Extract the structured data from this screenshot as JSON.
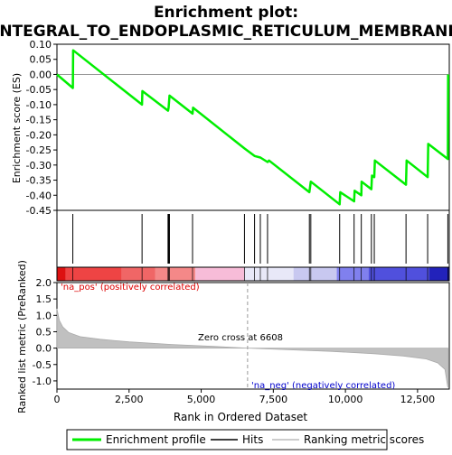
{
  "chart_data": {
    "type": "line",
    "title": "Enrichment plot:",
    "subtitle": "INTEGRAL_TO_ENDOPLASMIC_RETICULUM_MEMBRANE",
    "top_panel": {
      "ylabel": "Enrichment score (ES)",
      "ylim": [
        -0.45,
        0.1
      ],
      "yticks": [
        "0.10",
        "0.05",
        "0.00",
        "-0.05",
        "-0.10",
        "-0.15",
        "-0.20",
        "-0.25",
        "-0.30",
        "-0.35",
        "-0.40",
        "-0.45"
      ],
      "ytick_values": [
        0.1,
        0.05,
        0.0,
        -0.05,
        -0.1,
        -0.15,
        -0.2,
        -0.25,
        -0.3,
        -0.35,
        -0.4,
        -0.45
      ],
      "series_color": "#00ee00",
      "es_points": [
        [
          0,
          0.0
        ],
        [
          550,
          -0.045
        ],
        [
          560,
          0.08
        ],
        [
          2950,
          -0.1
        ],
        [
          2960,
          -0.055
        ],
        [
          3850,
          -0.12
        ],
        [
          3870,
          -0.11
        ],
        [
          3900,
          -0.07
        ],
        [
          4700,
          -0.13
        ],
        [
          4720,
          -0.11
        ],
        [
          6500,
          -0.245
        ],
        [
          6850,
          -0.27
        ],
        [
          7050,
          -0.275
        ],
        [
          7300,
          -0.29
        ],
        [
          7350,
          -0.285
        ],
        [
          8750,
          -0.39
        ],
        [
          8800,
          -0.355
        ],
        [
          9800,
          -0.43
        ],
        [
          9820,
          -0.39
        ],
        [
          10300,
          -0.42
        ],
        [
          10320,
          -0.385
        ],
        [
          10550,
          -0.4
        ],
        [
          10560,
          -0.355
        ],
        [
          10900,
          -0.38
        ],
        [
          10920,
          -0.335
        ],
        [
          11000,
          -0.34
        ],
        [
          11020,
          -0.285
        ],
        [
          12100,
          -0.365
        ],
        [
          12120,
          -0.285
        ],
        [
          12850,
          -0.34
        ],
        [
          12870,
          -0.23
        ],
        [
          13550,
          -0.28
        ],
        [
          13560,
          0.0
        ]
      ]
    },
    "hits": [
      550,
      2950,
      3850,
      3870,
      3900,
      4700,
      6500,
      6850,
      7050,
      7300,
      8750,
      8800,
      9800,
      10300,
      10550,
      10900,
      11000,
      12100,
      12850,
      13550
    ],
    "rank_panel": {
      "ylabel": "Ranked list metric (PreRanked)",
      "xlabel": "Rank in Ordered Dataset",
      "ylim": [
        -1.25,
        2.0
      ],
      "yticks": [
        "2.0",
        "1.5",
        "1.0",
        "0.5",
        "0.0",
        "-0.5",
        "-1.0"
      ],
      "ytick_values": [
        2.0,
        1.5,
        1.0,
        0.5,
        0.0,
        -0.5,
        -1.0
      ],
      "xlim": [
        0,
        13600
      ],
      "xticks": [
        "0",
        "2,500",
        "5,000",
        "7,500",
        "10,000",
        "12,500"
      ],
      "xtick_values": [
        0,
        2500,
        5000,
        7500,
        10000,
        12500
      ],
      "metric_curve": [
        [
          0,
          1.2
        ],
        [
          80,
          0.85
        ],
        [
          200,
          0.65
        ],
        [
          400,
          0.48
        ],
        [
          800,
          0.35
        ],
        [
          1500,
          0.27
        ],
        [
          2500,
          0.19
        ],
        [
          4000,
          0.11
        ],
        [
          5500,
          0.05
        ],
        [
          6608,
          0.0
        ],
        [
          8000,
          -0.05
        ],
        [
          9500,
          -0.1
        ],
        [
          11000,
          -0.17
        ],
        [
          12000,
          -0.24
        ],
        [
          12800,
          -0.33
        ],
        [
          13200,
          -0.45
        ],
        [
          13450,
          -0.65
        ],
        [
          13550,
          -1.2
        ]
      ],
      "zero_cross_label": "Zero cross at 6608",
      "zero_cross_rank": 6608,
      "pos_label": "'na_pos' (positively correlated)",
      "neg_label": "'na_neg' (negatively correlated)",
      "color_bar": [
        {
          "from": 0,
          "to": 300,
          "color": "#dd1111"
        },
        {
          "from": 300,
          "to": 2250,
          "color": "#ee4444"
        },
        {
          "from": 2250,
          "to": 3400,
          "color": "#f06666"
        },
        {
          "from": 3400,
          "to": 4800,
          "color": "#f48888"
        },
        {
          "from": 4800,
          "to": 6500,
          "color": "#f7bcd8"
        },
        {
          "from": 6500,
          "to": 8200,
          "color": "#e8e8f8"
        },
        {
          "from": 8200,
          "to": 9700,
          "color": "#c8c8f0"
        },
        {
          "from": 9700,
          "to": 10800,
          "color": "#8080ee"
        },
        {
          "from": 10800,
          "to": 12900,
          "color": "#5050dd"
        },
        {
          "from": 12900,
          "to": 13600,
          "color": "#2222bb"
        }
      ]
    },
    "legend": {
      "items": [
        "Enrichment profile",
        "Hits",
        "Ranking metric scores"
      ],
      "colors": [
        "#00ee00",
        "#000000",
        "#bbbbbb"
      ]
    }
  }
}
